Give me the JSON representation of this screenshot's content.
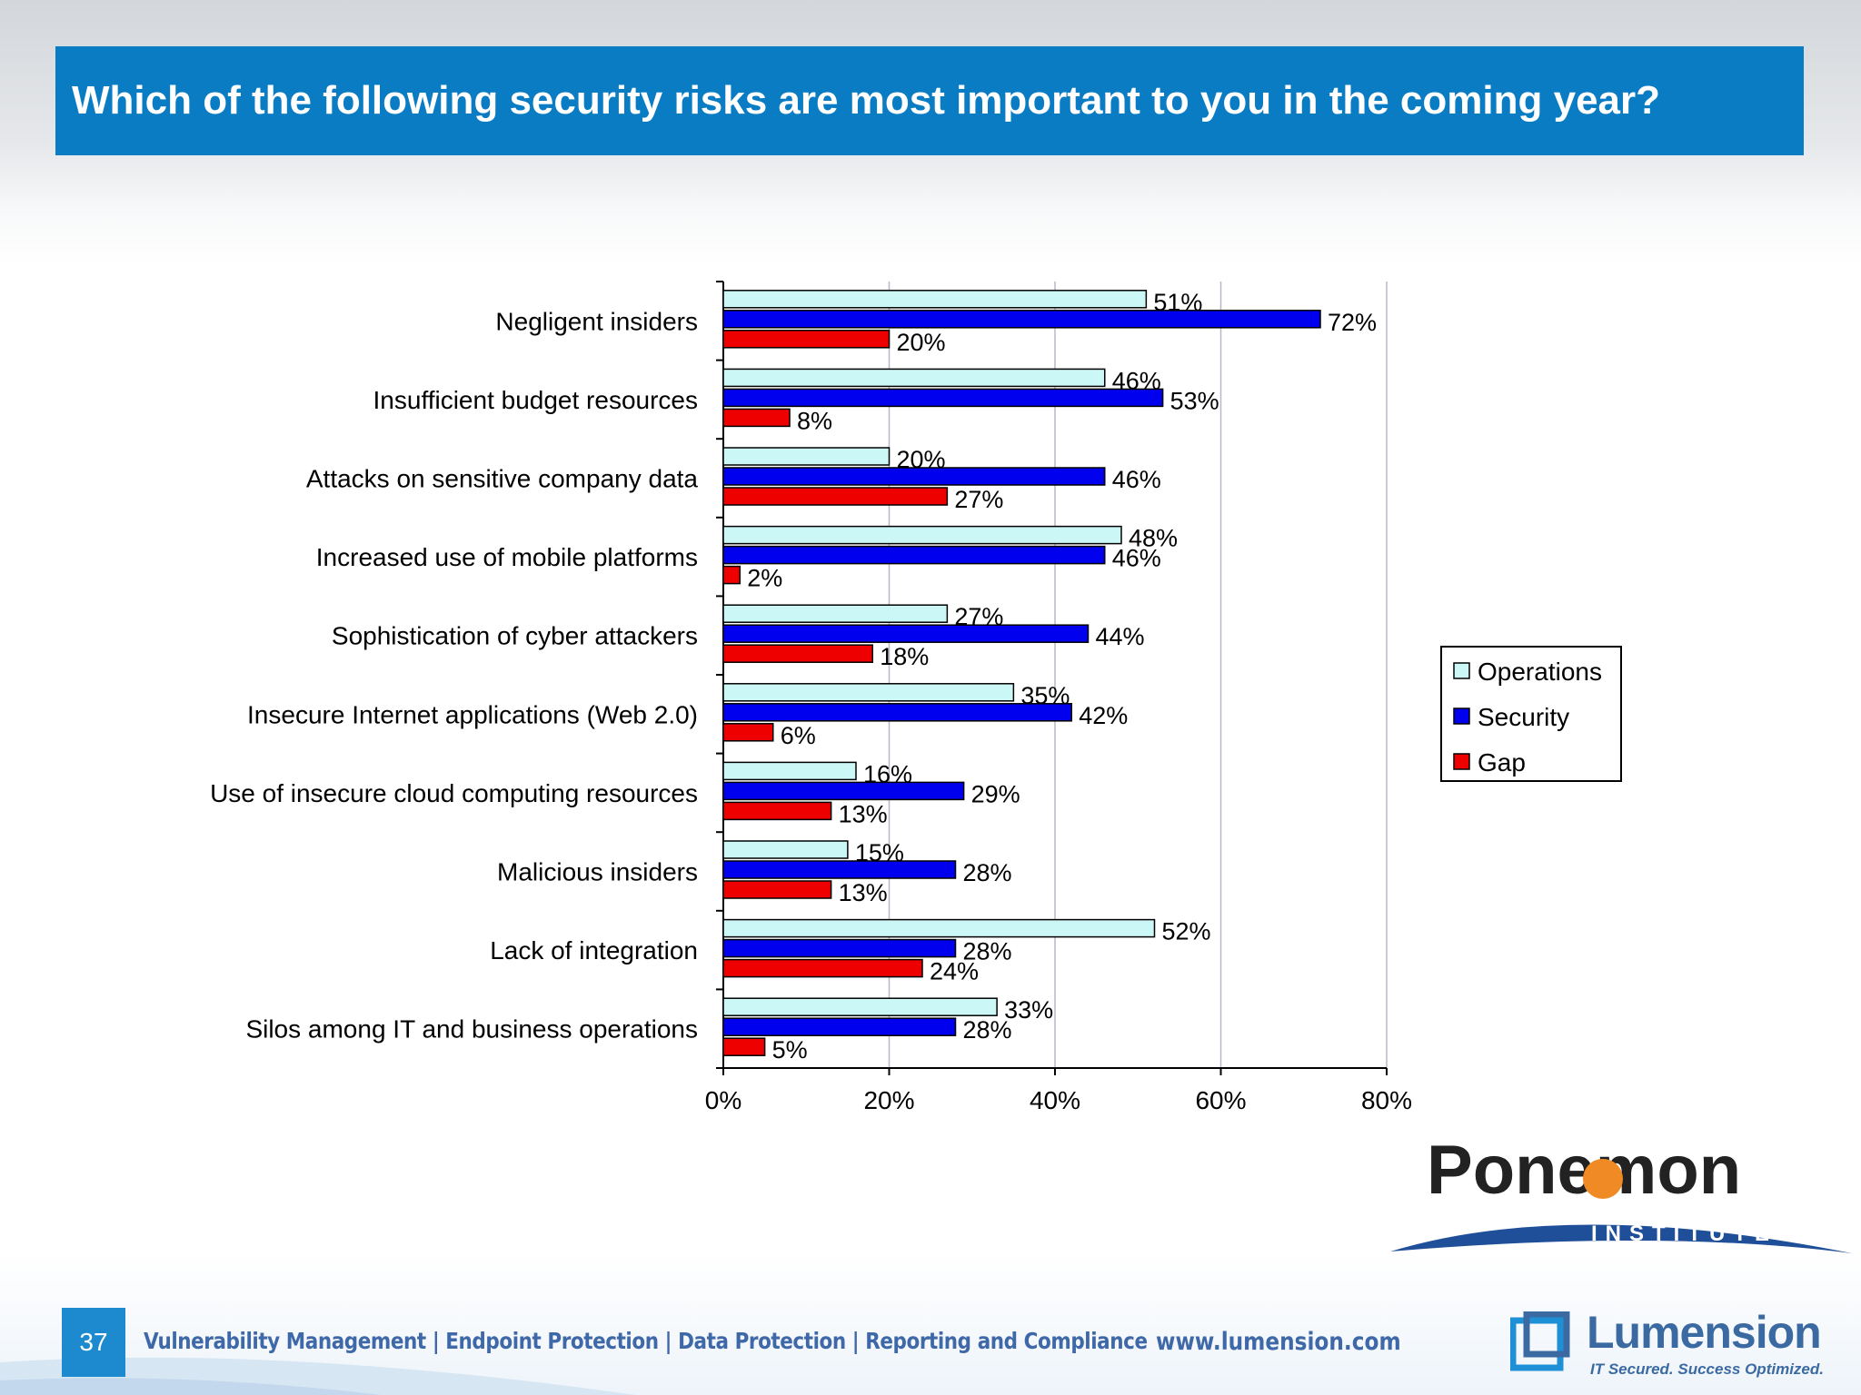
{
  "slide": {
    "title": "Which of the following security risks are most important to you in the coming year?",
    "page_number": "37",
    "footer_topics": "Vulnerability Management | Endpoint Protection | Data Protection | Reporting and Compliance",
    "footer_url": "www.lumension.com"
  },
  "logos": {
    "ponemon_name": "Ponemon",
    "ponemon_sub": "INSTITUTE",
    "lumension_name": "Lumension",
    "lumension_tagline": "IT Secured. Success Optimized."
  },
  "colors": {
    "title_bar": "#0a7cc4",
    "operations": "#ccf7f7",
    "security": "#0000ee",
    "gap": "#ee0000"
  },
  "chart_data": {
    "type": "bar",
    "orientation": "horizontal",
    "categories": [
      "Negligent insiders",
      "Insufficient budget resources",
      "Attacks on sensitive company data",
      "Increased use of mobile platforms",
      "Sophistication of cyber attackers",
      "Insecure Internet applications (Web 2.0)",
      "Use of insecure cloud computing resources",
      "Malicious insiders",
      "Lack of integration",
      "Silos among IT and business operations"
    ],
    "series": [
      {
        "name": "Operations",
        "values": [
          51,
          46,
          20,
          48,
          27,
          35,
          16,
          15,
          52,
          33
        ]
      },
      {
        "name": "Security",
        "values": [
          72,
          53,
          46,
          46,
          44,
          42,
          29,
          28,
          28,
          28
        ]
      },
      {
        "name": "Gap",
        "values": [
          20,
          8,
          27,
          2,
          18,
          6,
          13,
          13,
          24,
          5
        ]
      }
    ],
    "xlim": [
      0,
      80
    ],
    "x_ticks": [
      "0%",
      "20%",
      "40%",
      "60%",
      "80%"
    ],
    "value_suffix": "%",
    "grid": "vertical",
    "legend_position": "right"
  }
}
